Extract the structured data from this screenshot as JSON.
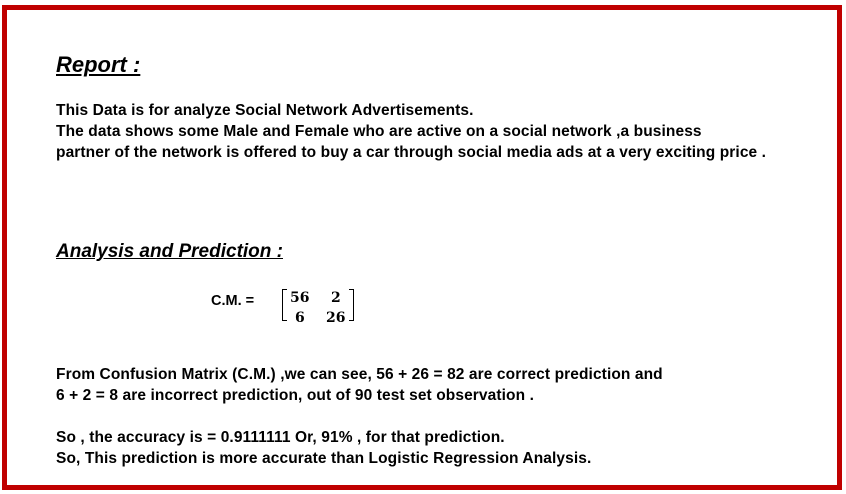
{
  "report": {
    "title": "Report :",
    "lines": [
      "This Data is for analyze Social Network Advertisements.",
      "The data shows some Male and Female who are active on a social network ,a business",
      "partner of the network is offered to buy a car through social media ads at a very exciting price ."
    ]
  },
  "analysis": {
    "title": "Analysis and Prediction :",
    "cm_label": "C.M. =",
    "matrix": {
      "r0c0": "56",
      "r0c1": "2",
      "r1c0": "6",
      "r1c1": "26"
    },
    "paragraph1": [
      "From Confusion Matrix (C.M.) ,we can see, 56 + 26 = 82 are correct prediction and",
      "6 + 2 = 8 are incorrect prediction, out of 90 test set observation ."
    ],
    "paragraph2": [
      "So , the accuracy is = 0.9111111 Or, 91% , for that prediction.",
      "So, This prediction is more accurate than Logistic Regression Analysis."
    ]
  },
  "colors": {
    "border": "#c00000",
    "text": "#000000",
    "background": "#ffffff"
  }
}
